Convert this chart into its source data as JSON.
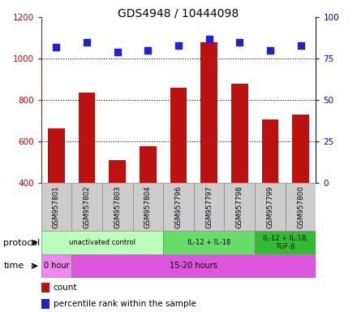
{
  "title": "GDS4948 / 10444098",
  "samples": [
    "GSM957801",
    "GSM957802",
    "GSM957803",
    "GSM957804",
    "GSM957796",
    "GSM957797",
    "GSM957798",
    "GSM957799",
    "GSM957800"
  ],
  "counts": [
    660,
    835,
    510,
    575,
    860,
    1080,
    880,
    705,
    730
  ],
  "percentile_ranks": [
    82,
    85,
    79,
    80,
    83,
    87,
    85,
    80,
    83
  ],
  "ymin": 400,
  "ymax": 1200,
  "yticks": [
    400,
    600,
    800,
    1000,
    1200
  ],
  "y2min": 0,
  "y2max": 100,
  "y2ticks": [
    0,
    25,
    50,
    75,
    100
  ],
  "bar_color": "#bb1111",
  "scatter_color": "#2222cc",
  "protocol_groups": [
    {
      "label": "unactivated control",
      "start": 0,
      "end": 4,
      "color": "#bbffbb"
    },
    {
      "label": "IL-12 + IL-18",
      "start": 4,
      "end": 7,
      "color": "#66dd66"
    },
    {
      "label": "IL-12 + IL-18,\nTGF-β",
      "start": 7,
      "end": 9,
      "color": "#33bb33"
    }
  ],
  "time_groups": [
    {
      "label": "0 hour",
      "start": 0,
      "end": 1,
      "color": "#ee88ee"
    },
    {
      "label": "15-20 hours",
      "start": 1,
      "end": 9,
      "color": "#dd55dd"
    }
  ],
  "legend_count_label": "count",
  "legend_pct_label": "percentile rank within the sample",
  "left_axis_color": "#cc0000",
  "right_axis_color": "#0000cc",
  "label_bg_color": "#cccccc",
  "label_border_color": "#888888"
}
